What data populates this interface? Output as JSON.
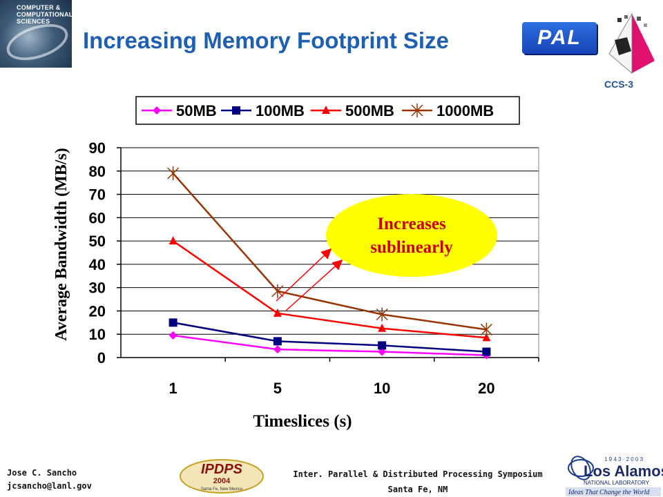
{
  "header": {
    "title": "Increasing Memory Footprint Size",
    "logo_left_text": "COMPUTER & COMPUTATIONAL SCIENCES",
    "pal_logo": "PAL",
    "ccs_label": "CCS-3"
  },
  "callout": {
    "text_line1": "Increases",
    "text_line2": "sublinearly",
    "fill_color": "#ffff00"
  },
  "footer": {
    "author_name": "Jose C. Sancho",
    "author_email": "jcsancho@lanl.gov",
    "conference_name": "Inter. Parallel & Distributed Processing Symposium",
    "conference_location": "Santa Fe, NM",
    "ipdps_logo_text": "IPDPS",
    "ipdps_year": "2004",
    "ipdps_place": "Santa Fe, New Mexico",
    "lanl_years": "1 9 4 3 · 2 0 0 3",
    "lanl_name": "Los Alamos",
    "lanl_sub": "NATIONAL LABORATORY",
    "lanl_tagline": "Ideas That Change the World"
  },
  "chart_data": {
    "type": "line",
    "categories": [
      "1",
      "5",
      "10",
      "20"
    ],
    "xlabel": "Timeslices (s)",
    "ylabel": "Average Bandwidth (MB/s)",
    "ylim": [
      0,
      90
    ],
    "yticks": [
      "0",
      "10",
      "20",
      "30",
      "40",
      "50",
      "60",
      "70",
      "80",
      "90"
    ],
    "grid": "horizontal",
    "legend_position": "top",
    "series": [
      {
        "name": "50MB",
        "values": [
          9.5,
          3.5,
          2.5,
          1
        ],
        "color": "#ff00ff",
        "marker": "diamond"
      },
      {
        "name": "100MB",
        "values": [
          15,
          7,
          5.2,
          2.5
        ],
        "color": "#000080",
        "marker": "square"
      },
      {
        "name": "500MB",
        "values": [
          50,
          19,
          12.5,
          8.5
        ],
        "color": "#ff0000",
        "marker": "triangle"
      },
      {
        "name": "1000MB",
        "values": [
          79,
          28.5,
          18.5,
          12
        ],
        "color": "#993300",
        "marker": "star"
      }
    ]
  }
}
